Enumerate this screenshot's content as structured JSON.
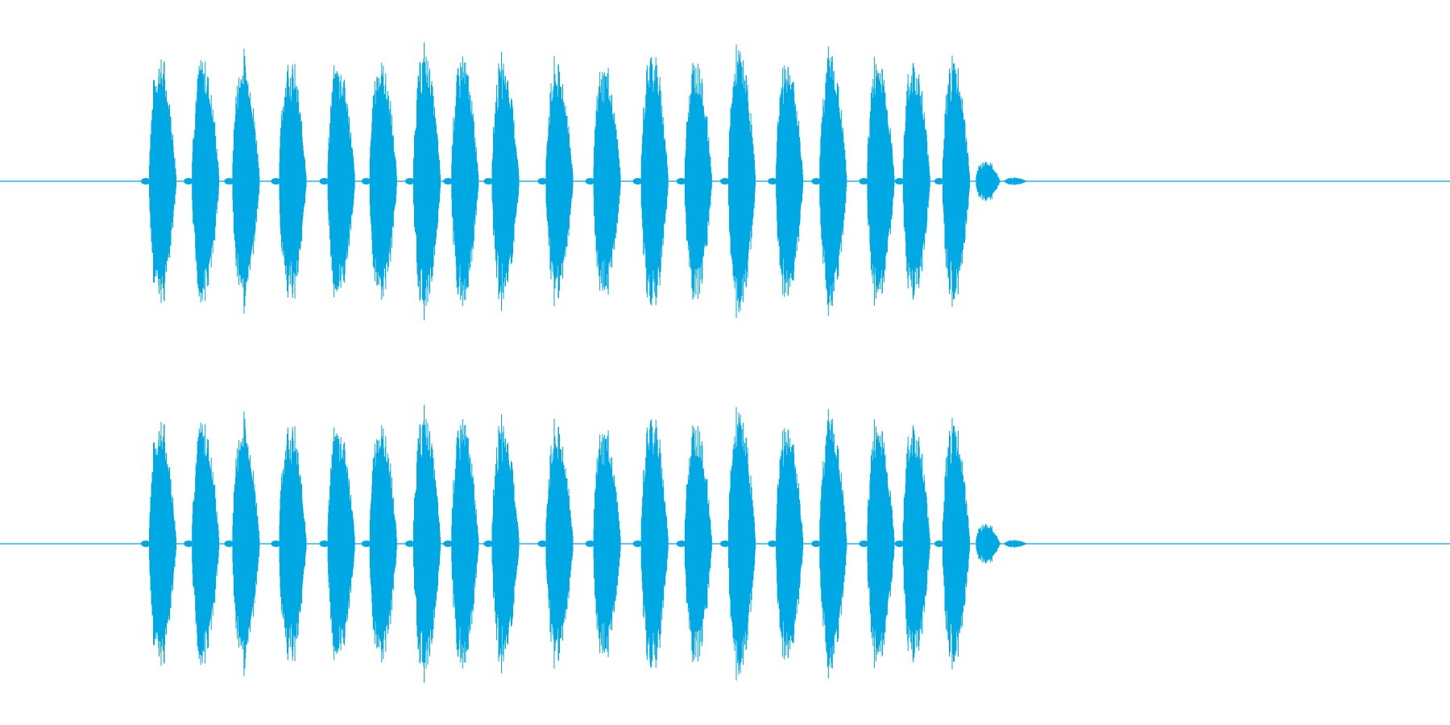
{
  "waveform": {
    "color": "#00a8e4",
    "channels": [
      {
        "name": "channel-1"
      },
      {
        "name": "channel-2"
      }
    ],
    "bursts": [
      {
        "t": 0.0,
        "amp": 0.94
      },
      {
        "t": 0.054,
        "amp": 0.94
      },
      {
        "t": 0.105,
        "amp": 0.94
      },
      {
        "t": 0.164,
        "amp": 0.92
      },
      {
        "t": 0.225,
        "amp": 0.91
      },
      {
        "t": 0.278,
        "amp": 0.93
      },
      {
        "t": 0.333,
        "amp": 1.0
      },
      {
        "t": 0.381,
        "amp": 0.95
      },
      {
        "t": 0.432,
        "amp": 0.92
      },
      {
        "t": 0.5,
        "amp": 0.9
      },
      {
        "t": 0.56,
        "amp": 0.88
      },
      {
        "t": 0.62,
        "amp": 1.0
      },
      {
        "t": 0.675,
        "amp": 0.93
      },
      {
        "t": 0.73,
        "amp": 1.0
      },
      {
        "t": 0.79,
        "amp": 0.93
      },
      {
        "t": 0.845,
        "amp": 0.98
      },
      {
        "t": 0.905,
        "amp": 0.95
      },
      {
        "t": 0.95,
        "amp": 0.93
      },
      {
        "t": 1.0,
        "amp": 0.94
      }
    ],
    "tail": [
      {
        "t": 1.04,
        "amp": 0.16
      },
      {
        "t": 1.075,
        "amp": 0.03
      }
    ]
  }
}
